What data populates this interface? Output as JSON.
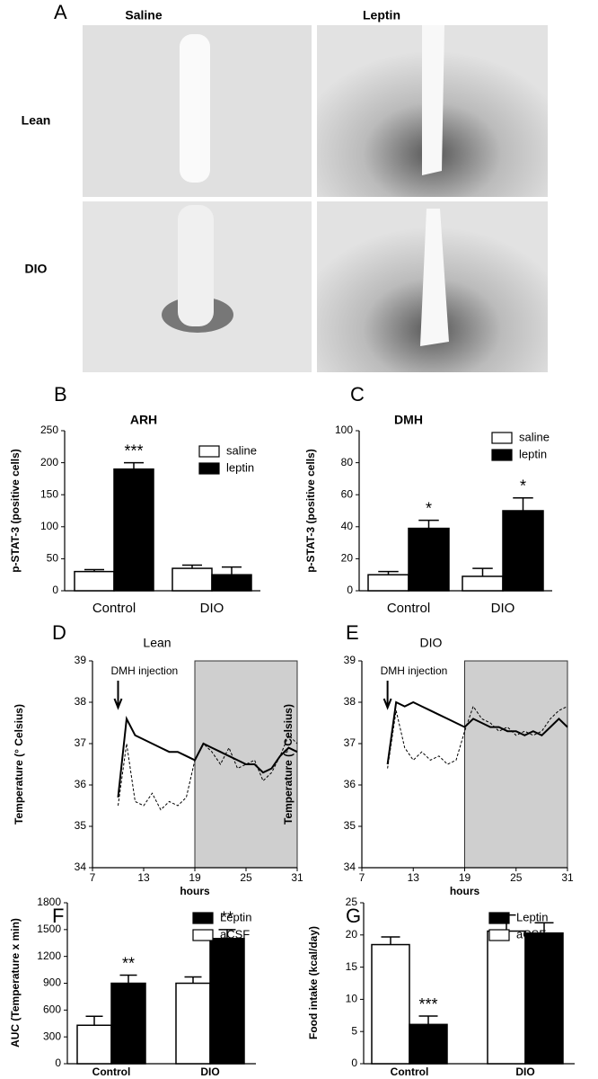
{
  "panel_a": {
    "label": "A",
    "columns": [
      "Saline",
      "Leptin"
    ],
    "rows": [
      "Lean",
      "DIO"
    ]
  },
  "chart_data": [
    {
      "type": "bar",
      "panel": "B",
      "title": "ARH",
      "y_label": "p-STAT-3 (positive cells)",
      "categories": [
        "Control",
        "DIO"
      ],
      "ylim": [
        0,
        250
      ],
      "yticks": [
        0,
        50,
        100,
        150,
        200,
        250
      ],
      "series": [
        {
          "name": "saline",
          "color": "#ffffff",
          "values": [
            30,
            35
          ],
          "errors": [
            3,
            5
          ],
          "significance": [
            null,
            null
          ]
        },
        {
          "name": "leptin",
          "color": "#000000",
          "values": [
            190,
            25
          ],
          "errors": [
            10,
            12
          ],
          "significance": [
            "***",
            null
          ]
        }
      ]
    },
    {
      "type": "bar",
      "panel": "C",
      "title": "DMH",
      "y_label": "p-STAT-3 (positive cells)",
      "categories": [
        "Control",
        "DIO"
      ],
      "ylim": [
        0,
        100
      ],
      "yticks": [
        0,
        20,
        40,
        60,
        80,
        100
      ],
      "series": [
        {
          "name": "saline",
          "color": "#ffffff",
          "values": [
            10,
            9
          ],
          "errors": [
            2,
            5
          ],
          "significance": [
            null,
            null
          ]
        },
        {
          "name": "leptin",
          "color": "#000000",
          "values": [
            39,
            50
          ],
          "errors": [
            5,
            8
          ],
          "significance": [
            "*",
            "*"
          ]
        }
      ]
    },
    {
      "type": "line",
      "panel": "D",
      "title": "Lean",
      "x_label": "hours",
      "y_label": "Temperature (° Celsius)",
      "annotation": {
        "text": "DMH injection",
        "x": 10
      },
      "shaded_xrange": [
        19,
        31
      ],
      "xlim": [
        7,
        31
      ],
      "xticks": [
        7,
        13,
        19,
        25,
        31
      ],
      "ylim": [
        34,
        39
      ],
      "yticks": [
        34,
        35,
        36,
        37,
        38,
        39
      ],
      "x": [
        10,
        11,
        12,
        13,
        14,
        15,
        16,
        17,
        18,
        19,
        20,
        21,
        22,
        23,
        24,
        25,
        26,
        27,
        28,
        29,
        30,
        31
      ],
      "series": [
        {
          "color": "#000000",
          "style": "solid",
          "values": [
            35.7,
            37.6,
            37.2,
            37.1,
            37.0,
            36.9,
            36.8,
            36.8,
            36.7,
            36.6,
            37.0,
            36.9,
            36.8,
            36.7,
            36.6,
            36.5,
            36.5,
            36.3,
            36.4,
            36.7,
            36.9,
            36.8
          ]
        },
        {
          "color": "#000000",
          "style": "dashed",
          "values": [
            35.5,
            37.0,
            35.6,
            35.5,
            35.8,
            35.4,
            35.6,
            35.5,
            35.7,
            36.6,
            37.0,
            36.8,
            36.5,
            36.9,
            36.4,
            36.5,
            36.6,
            36.1,
            36.3,
            36.7,
            37.2,
            37.0
          ]
        }
      ]
    },
    {
      "type": "line",
      "panel": "E",
      "title": "DIO",
      "x_label": "hours",
      "y_label": "Temperature (° Celsius)",
      "annotation": {
        "text": "DMH injection",
        "x": 10
      },
      "shaded_xrange": [
        19,
        31
      ],
      "xlim": [
        7,
        31
      ],
      "xticks": [
        7,
        13,
        19,
        25,
        31
      ],
      "ylim": [
        34,
        39
      ],
      "yticks": [
        34,
        35,
        36,
        37,
        38,
        39
      ],
      "x": [
        10,
        11,
        12,
        13,
        14,
        15,
        16,
        17,
        18,
        19,
        20,
        21,
        22,
        23,
        24,
        25,
        26,
        27,
        28,
        29,
        30,
        31
      ],
      "series": [
        {
          "color": "#000000",
          "style": "solid",
          "values": [
            36.5,
            38.0,
            37.9,
            38.0,
            37.9,
            37.8,
            37.7,
            37.6,
            37.5,
            37.4,
            37.6,
            37.5,
            37.4,
            37.4,
            37.3,
            37.3,
            37.2,
            37.3,
            37.2,
            37.4,
            37.6,
            37.4
          ]
        },
        {
          "color": "#000000",
          "style": "dashed",
          "values": [
            36.4,
            37.8,
            36.9,
            36.6,
            36.8,
            36.6,
            36.7,
            36.5,
            36.6,
            37.3,
            37.9,
            37.6,
            37.5,
            37.3,
            37.4,
            37.2,
            37.3,
            37.2,
            37.3,
            37.6,
            37.8,
            37.9
          ]
        }
      ]
    },
    {
      "type": "bar",
      "panel": "F",
      "y_label": "AUC (Temperature x min)",
      "legend_reversed": true,
      "categories": [
        "Control",
        "DIO"
      ],
      "ylim": [
        0,
        1800
      ],
      "yticks": [
        0,
        300,
        600,
        900,
        1200,
        1500,
        1800
      ],
      "series": [
        {
          "name": "aCSF",
          "color": "#ffffff",
          "values": [
            430,
            900
          ],
          "errors": [
            100,
            70
          ],
          "significance": [
            null,
            null
          ]
        },
        {
          "name": "Leptin",
          "color": "#000000",
          "values": [
            900,
            1400
          ],
          "errors": [
            90,
            100
          ],
          "significance": [
            "**",
            "**"
          ]
        }
      ]
    },
    {
      "type": "bar",
      "panel": "G",
      "y_label": "Food intake (kcal/day)",
      "legend_reversed": true,
      "categories": [
        "Control",
        "DIO"
      ],
      "ylim": [
        0,
        25
      ],
      "yticks": [
        0,
        5,
        10,
        15,
        20,
        25
      ],
      "series": [
        {
          "name": "aCSF",
          "color": "#ffffff",
          "values": [
            18.5,
            20.6
          ],
          "errors": [
            1.2,
            2.5
          ],
          "significance": [
            null,
            null
          ]
        },
        {
          "name": "Leptin",
          "color": "#000000",
          "values": [
            6.1,
            20.3
          ],
          "errors": [
            1.3,
            1.6
          ],
          "significance": [
            "***",
            null
          ]
        }
      ]
    }
  ]
}
